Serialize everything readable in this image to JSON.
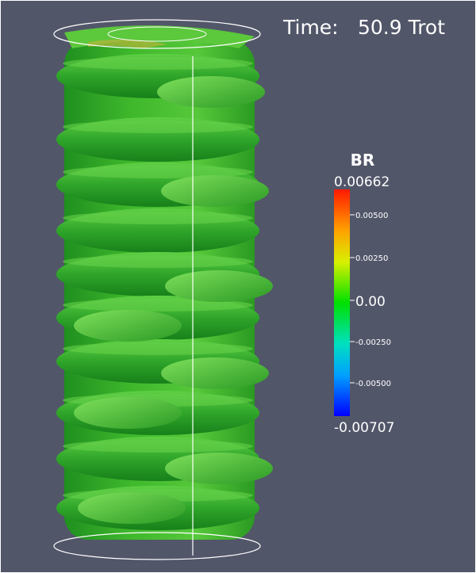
{
  "header": {
    "time_label": "Time:",
    "time_value": "50.9 Trot"
  },
  "colorbar": {
    "title": "BR",
    "max_label": "0.00662",
    "tick_labels": [
      "0.00500",
      "0.00250",
      "0.00",
      "-0.00250",
      "-0.00500"
    ],
    "min_label": "-0.00707"
  }
}
